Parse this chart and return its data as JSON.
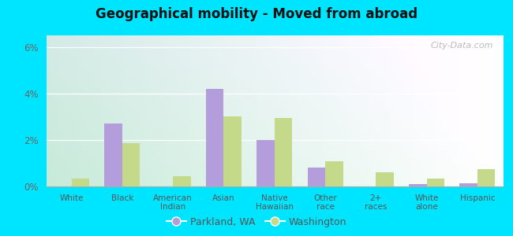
{
  "title": "Geographical mobility - Moved from abroad",
  "categories": [
    "White",
    "Black",
    "American\nIndian",
    "Asian",
    "Native\nHawaiian",
    "Other\nrace",
    "2+\nraces",
    "White\nalone",
    "Hispanic"
  ],
  "parkland_values": [
    0.0,
    2.7,
    0.0,
    4.2,
    2.0,
    0.8,
    0.0,
    0.1,
    0.15
  ],
  "washington_values": [
    0.35,
    1.85,
    0.45,
    3.0,
    2.95,
    1.1,
    0.6,
    0.35,
    0.75
  ],
  "parkland_color": "#b39ddb",
  "washington_color": "#c5d98a",
  "ylim": [
    0,
    6.5
  ],
  "yticks": [
    0,
    2,
    4,
    6
  ],
  "ytick_labels": [
    "0%",
    "2%",
    "4%",
    "6%"
  ],
  "bar_width": 0.35,
  "outer_color": "#00e5ff",
  "legend_parkland": "Parkland, WA",
  "legend_washington": "Washington",
  "watermark": "City-Data.com",
  "bg_color_left": "#c8ecd8",
  "bg_color_right": "#f0faf8"
}
